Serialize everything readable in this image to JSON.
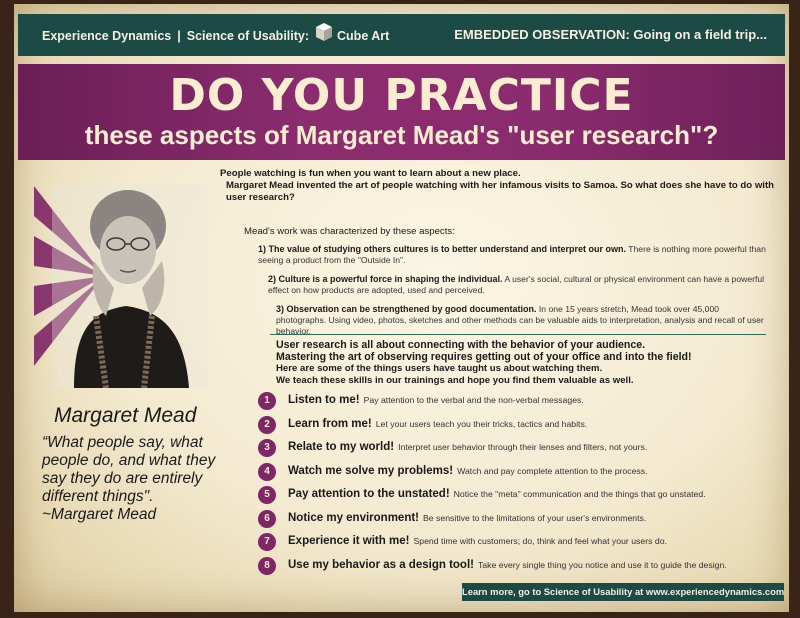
{
  "header": {
    "brand": "Experience Dynamics",
    "separator": "|",
    "series_label": "Science of Usability:",
    "series_name": "Cube Art",
    "section": "EMBEDDED OBSERVATION:  Going on a field trip..."
  },
  "banner": {
    "title": "DO YOU PRACTICE",
    "subtitle": "these aspects of Margaret Mead's \"user research\"?"
  },
  "intro": {
    "line1": "People watching is fun when you want to learn about a new place.",
    "line2": "Margaret Mead invented the art of people watching  with her infamous visits to Samoa. So what does she have to do with",
    "line3": "user research?",
    "characterized": "Mead's work was characterized by these aspects:"
  },
  "aspects": [
    {
      "title": "1) The value of studying others cultures is to better understand and interpret our own.",
      "desc": "There is nothing more powerful than seeing a product from the \"Outside In\"."
    },
    {
      "title": "2) Culture is a powerful force in shaping the individual.",
      "desc": "A user's social, cultural or physical environment can have a powerful effect on how products are adopted, used and perceived."
    },
    {
      "title": "3) Observation can be strengthened by good documentation.",
      "desc": "In one 15 years stretch, Mead took over 45,000 photographs. Using video, photos, sketches and other methods can be valuable aids to interpretation, analysis and recall of user behavior."
    }
  ],
  "connect": {
    "line1": "User research is all about connecting with the behavior of your audience.",
    "line2": "Mastering the art of observing requires getting out of your office and into the field!",
    "line3": "Here are some of the things users have taught us about watching them.",
    "line4": "We teach these skills in our trainings and hope you find them valuable as well."
  },
  "list": [
    {
      "num": "1",
      "title": "Listen to me!",
      "desc": "Pay attention to the verbal and the non-verbal messages."
    },
    {
      "num": "2",
      "title": "Learn from me!",
      "desc": "Let your users teach you their tricks, tactics and habits."
    },
    {
      "num": "3",
      "title": "Relate to my world!",
      "desc": "Interpret user behavior through their lenses and filters, not yours."
    },
    {
      "num": "4",
      "title": "Watch me solve my problems!",
      "desc": "Watch and pay complete attention to the process."
    },
    {
      "num": "5",
      "title": "Pay attention to the unstated!",
      "desc": "Notice the \"meta\" communication and the things that go unstated."
    },
    {
      "num": "6",
      "title": "Notice my environment!",
      "desc": "Be sensitive to the limitations of your user's environments."
    },
    {
      "num": "7",
      "title": "Experience it with me!",
      "desc": "Spend time with customers; do, think and feel what your users do."
    },
    {
      "num": "8",
      "title": "Use my behavior as a design tool!",
      "desc": "Take every single thing you notice and use it to guide the design."
    }
  ],
  "person": {
    "name": "Margaret Mead",
    "quote": "“What people say, what people do, and what  they say they do are entirely different things\".",
    "author": "~Margaret Mead"
  },
  "footer": "Learn more, go to Science of Usability at www.experiencedynamics.com",
  "colors": {
    "header_bg": "#1c4a44",
    "banner_bg": "#8a2b6d",
    "number_badge": "#7e2666",
    "paper": "#f3ead0"
  }
}
